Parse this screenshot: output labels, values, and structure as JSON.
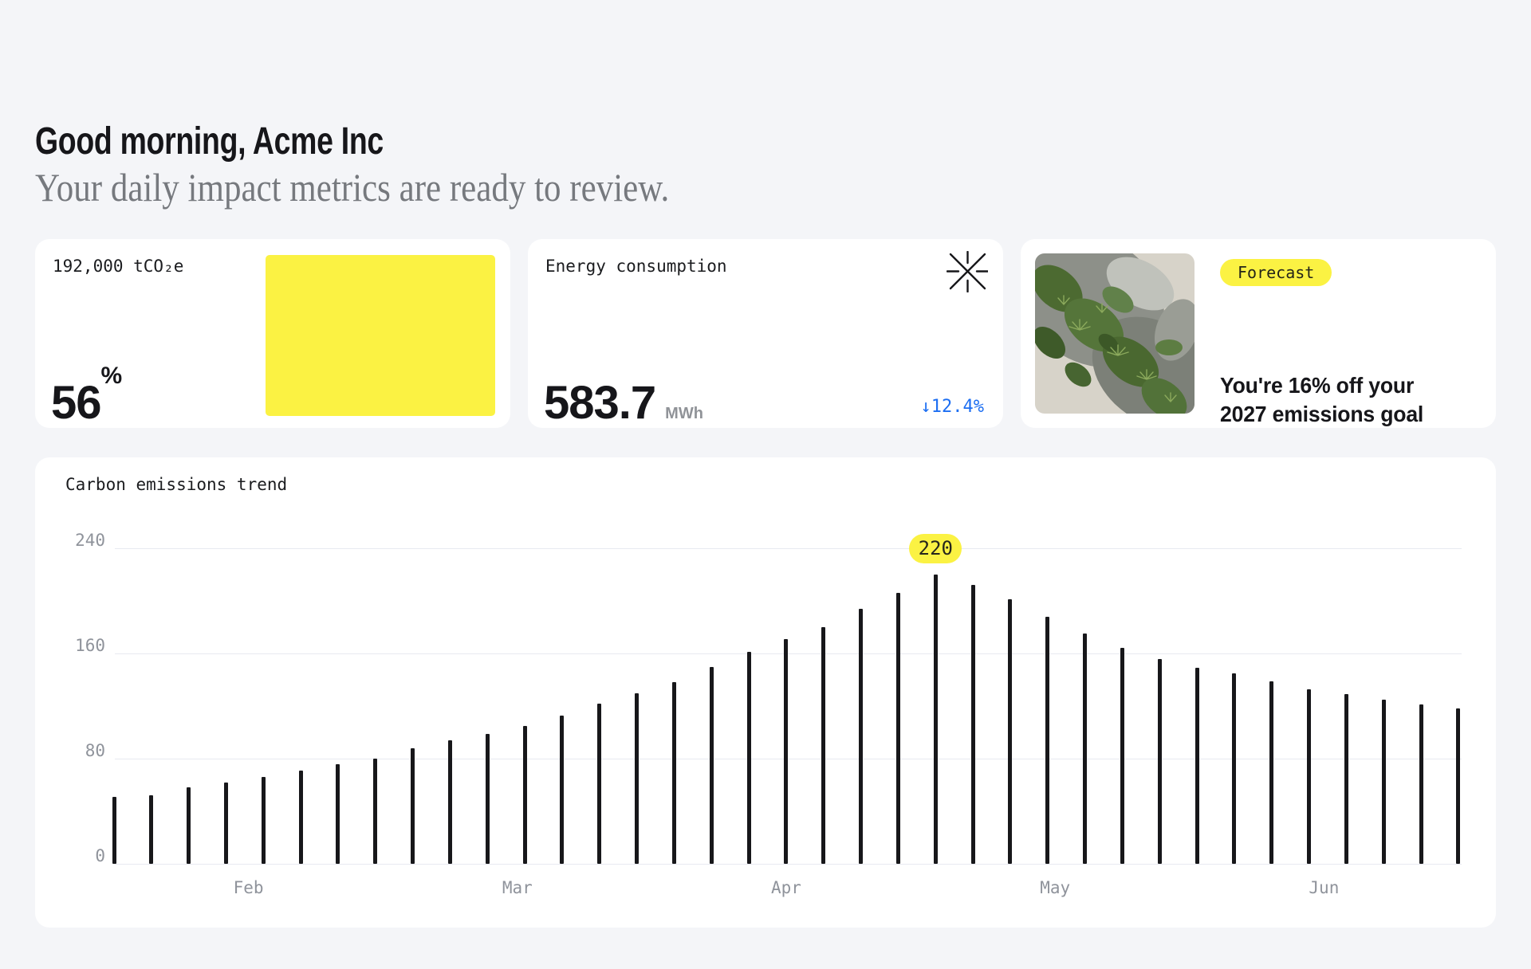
{
  "header": {
    "greeting": "Good morning, Acme Inc",
    "subtitle": "Your daily impact metrics are ready to review."
  },
  "cards": {
    "emissions": {
      "label": "192,000 tCO₂e",
      "value": "56",
      "unit": "%",
      "accent_color": "#fbf243"
    },
    "energy": {
      "label": "Energy consumption",
      "value": "583.7",
      "unit": "MWh",
      "delta": "↓12.4%",
      "delta_color": "#1c6ef2",
      "icon": "asterisk-icon"
    },
    "forecast": {
      "badge": "Forecast",
      "headline_line1": "You're 16% off your",
      "headline_line2": "2027 emissions goal",
      "image": "moss-covered-rock-photo"
    }
  },
  "colors": {
    "page_bg": "#f4f5f8",
    "card_bg": "#ffffff",
    "accent_yellow": "#fbf243",
    "bar_color": "#17171a",
    "axis_gray": "#8f939b",
    "delta_blue": "#1c6ef2"
  },
  "chart_data": {
    "type": "bar",
    "title": "Carbon emissions trend",
    "xlabel": "",
    "ylabel": "",
    "ylim": [
      0,
      240
    ],
    "yticks": [
      0,
      80,
      160,
      240
    ],
    "grid": "horizontal",
    "legend": "none",
    "categories_months": [
      "Feb",
      "Mar",
      "Apr",
      "May",
      "Jun"
    ],
    "values": [
      51,
      52,
      58,
      62,
      66,
      71,
      76,
      80,
      88,
      94,
      99,
      105,
      113,
      122,
      130,
      138,
      150,
      161,
      171,
      180,
      194,
      206,
      220,
      212,
      201,
      188,
      175,
      164,
      156,
      149,
      145,
      139,
      133,
      129,
      125,
      121,
      118
    ],
    "highlight": {
      "index": 22,
      "label": "220"
    }
  }
}
